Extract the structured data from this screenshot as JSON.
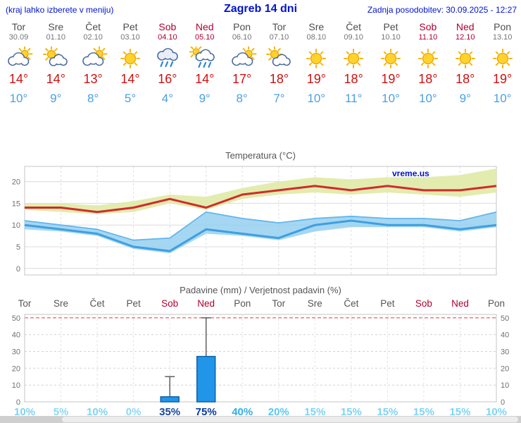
{
  "header": {
    "left": "(kraj lahko izberete v meniju)",
    "title": "Zagreb 14 dni",
    "updated": "Zadnja posodobitev: 30.09.2025 - 12:27"
  },
  "watermark": "vreme.us",
  "days": [
    {
      "name": "Tor",
      "date": "30.09",
      "weekend": false,
      "icon": "cloud-sun",
      "tmax": "14°",
      "tmin": "10°"
    },
    {
      "name": "Sre",
      "date": "01.10",
      "weekend": false,
      "icon": "sun-cloud",
      "tmax": "14°",
      "tmin": "9°"
    },
    {
      "name": "Čet",
      "date": "02.10",
      "weekend": false,
      "icon": "cloud-sun",
      "tmax": "13°",
      "tmin": "8°"
    },
    {
      "name": "Pet",
      "date": "03.10",
      "weekend": false,
      "icon": "sun",
      "tmax": "14°",
      "tmin": "5°"
    },
    {
      "name": "Sob",
      "date": "04.10",
      "weekend": true,
      "icon": "rain",
      "tmax": "16°",
      "tmin": "4°"
    },
    {
      "name": "Ned",
      "date": "05.10",
      "weekend": true,
      "icon": "rain-sun",
      "tmax": "14°",
      "tmin": "9°"
    },
    {
      "name": "Pon",
      "date": "06.10",
      "weekend": false,
      "icon": "cloud-sun",
      "tmax": "17°",
      "tmin": "8°"
    },
    {
      "name": "Tor",
      "date": "07.10",
      "weekend": false,
      "icon": "sun-cloud",
      "tmax": "18°",
      "tmin": "7°"
    },
    {
      "name": "Sre",
      "date": "08.10",
      "weekend": false,
      "icon": "sun",
      "tmax": "19°",
      "tmin": "10°"
    },
    {
      "name": "Čet",
      "date": "09.10",
      "weekend": false,
      "icon": "sun",
      "tmax": "18°",
      "tmin": "11°"
    },
    {
      "name": "Pet",
      "date": "10.10",
      "weekend": false,
      "icon": "sun",
      "tmax": "19°",
      "tmin": "10°"
    },
    {
      "name": "Sob",
      "date": "11.10",
      "weekend": true,
      "icon": "sun",
      "tmax": "18°",
      "tmin": "10°"
    },
    {
      "name": "Ned",
      "date": "12.10",
      "weekend": true,
      "icon": "sun",
      "tmax": "18°",
      "tmin": "9°"
    },
    {
      "name": "Pon",
      "date": "13.10",
      "weekend": false,
      "icon": "sun",
      "tmax": "19°",
      "tmin": "10°"
    }
  ],
  "chart_data": [
    {
      "type": "line",
      "title": "Temperatura (°C)",
      "ylim": [
        -1.5,
        23.5
      ],
      "yticks": [
        0,
        5,
        10,
        15,
        20
      ],
      "grid": true,
      "legend_position": "none",
      "x_labels": [
        "Tor",
        "Sre",
        "Čet",
        "Pet",
        "Sob",
        "Ned",
        "Pon",
        "Tor",
        "Sre",
        "Čet",
        "Pet",
        "Sob",
        "Ned",
        "Pon"
      ],
      "series": [
        {
          "name": "tmax",
          "color": "#d12b2b",
          "values": [
            14,
            14,
            13,
            14,
            16,
            14,
            17,
            18,
            19,
            18,
            19,
            18,
            18,
            19
          ]
        },
        {
          "name": "tmax_range_high",
          "values": [
            15,
            15,
            14.5,
            15.5,
            17,
            16.5,
            18.5,
            20,
            21,
            20.5,
            21,
            21,
            21.5,
            23
          ]
        },
        {
          "name": "tmax_range_low",
          "values": [
            13.5,
            13,
            12.5,
            13,
            15,
            13.5,
            16,
            17,
            17.5,
            17,
            17.5,
            17,
            16.5,
            17.5
          ]
        },
        {
          "name": "tmin",
          "color": "#3f9fe0",
          "values": [
            10,
            9,
            8,
            5,
            4,
            9,
            8,
            7,
            10,
            11,
            10,
            10,
            9,
            10
          ]
        },
        {
          "name": "tmin_range_high",
          "values": [
            11,
            10,
            9,
            6.5,
            7,
            13,
            11.5,
            10.5,
            11.5,
            12,
            11.5,
            11.5,
            11,
            13
          ]
        },
        {
          "name": "tmin_range_low",
          "values": [
            9,
            8.5,
            7.5,
            4.5,
            3.5,
            8,
            7.5,
            6.5,
            8.5,
            9.5,
            9.5,
            9.5,
            8.5,
            9.5
          ]
        }
      ],
      "bands": [
        {
          "high": "tmax_range_high",
          "low": "tmax_range_low",
          "fill": "#dfeaa5",
          "opacity": 0.9
        },
        {
          "high": "tmin_range_high",
          "low": "tmin_range_low",
          "fill": "#8fcdf0",
          "opacity": 0.8
        }
      ]
    },
    {
      "type": "bar",
      "title": "Padavine (mm) / Verjetnost padavin (%)",
      "ylim": [
        0,
        52
      ],
      "yticks": [
        0,
        10,
        20,
        30,
        40,
        50
      ],
      "x_labels": [
        "Tor",
        "Sre",
        "Čet",
        "Pet",
        "Sob",
        "Ned",
        "Pon",
        "Tor",
        "Sre",
        "Čet",
        "Pet",
        "Sob",
        "Ned",
        "Pon"
      ],
      "weekend": [
        false,
        false,
        false,
        false,
        true,
        true,
        false,
        false,
        false,
        false,
        false,
        true,
        true,
        false
      ],
      "values_mm": [
        0,
        0,
        0,
        0,
        3,
        27,
        0,
        0,
        0,
        0,
        0,
        0,
        0,
        0
      ],
      "range_max_mm": [
        0,
        0,
        0,
        0,
        15,
        50,
        0,
        0,
        0,
        0,
        0,
        0,
        0,
        0
      ],
      "probabilities": [
        "10%",
        "5%",
        "10%",
        "0%",
        "35%",
        "75%",
        "40%",
        "20%",
        "15%",
        "15%",
        "15%",
        "15%",
        "15%",
        "10%"
      ],
      "probability_colors": [
        "#7ed3f5",
        "#8ad8f6",
        "#7ed3f5",
        "#8ad8f6",
        "#17479e",
        "#083a9c",
        "#2fb0e8",
        "#5cc6f0",
        "#7ed3f5",
        "#7ed3f5",
        "#7ed3f5",
        "#7ed3f5",
        "#7ed3f5",
        "#7ed3f5"
      ],
      "bar_color": "#2196e8",
      "bar_border": "#1060a8",
      "limit_line_color": "#e05555"
    }
  ]
}
